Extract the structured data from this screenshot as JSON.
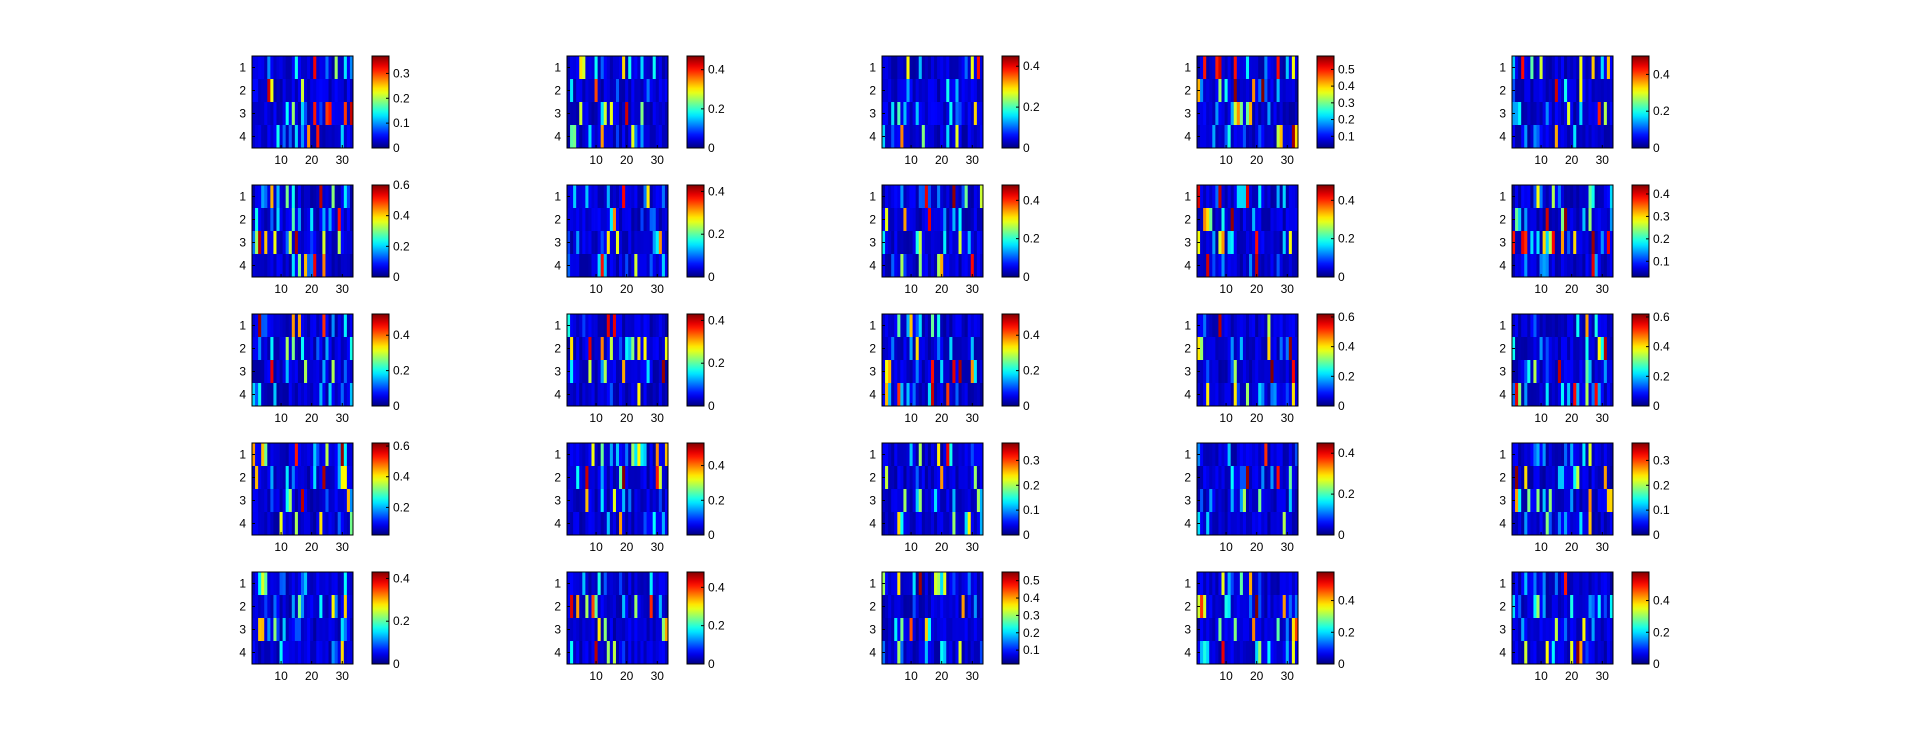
{
  "figure": {
    "rows": 5,
    "cols": 5,
    "colormap": "jet",
    "background": "#ffffff"
  },
  "chart_data": [
    {
      "type": "heatmap",
      "row": 0,
      "col": 0,
      "n_rows": 4,
      "n_cols": 33,
      "yticks": [
        "1",
        "2",
        "3",
        "4"
      ],
      "xticks": [
        "10",
        "20",
        "30"
      ],
      "colorbar_ticks": [
        "0",
        "0.1",
        "0.2",
        "0.3"
      ],
      "clim": [
        0,
        0.37
      ],
      "seed": 1
    },
    {
      "type": "heatmap",
      "row": 0,
      "col": 1,
      "n_rows": 4,
      "n_cols": 33,
      "yticks": [
        "1",
        "2",
        "3",
        "4"
      ],
      "xticks": [
        "10",
        "20",
        "30"
      ],
      "colorbar_ticks": [
        "0",
        "0.2",
        "0.4"
      ],
      "clim": [
        0,
        0.47
      ],
      "seed": 2
    },
    {
      "type": "heatmap",
      "row": 0,
      "col": 2,
      "n_rows": 4,
      "n_cols": 33,
      "yticks": [
        "1",
        "2",
        "3",
        "4"
      ],
      "xticks": [
        "10",
        "20",
        "30"
      ],
      "colorbar_ticks": [
        "0",
        "0.2",
        "0.4"
      ],
      "clim": [
        0,
        0.45
      ],
      "seed": 3
    },
    {
      "type": "heatmap",
      "row": 0,
      "col": 3,
      "n_rows": 4,
      "n_cols": 33,
      "yticks": [
        "1",
        "2",
        "3",
        "4"
      ],
      "xticks": [
        "10",
        "20",
        "30"
      ],
      "colorbar_ticks": [
        "0.1",
        "0.2",
        "0.3",
        "0.4",
        "0.5"
      ],
      "clim": [
        0.03,
        0.58
      ],
      "seed": 4
    },
    {
      "type": "heatmap",
      "row": 0,
      "col": 4,
      "n_rows": 4,
      "n_cols": 33,
      "yticks": [
        "1",
        "2",
        "3",
        "4"
      ],
      "xticks": [
        "10",
        "20",
        "30"
      ],
      "colorbar_ticks": [
        "0",
        "0.2",
        "0.4"
      ],
      "clim": [
        0,
        0.5
      ],
      "seed": 5
    },
    {
      "type": "heatmap",
      "row": 1,
      "col": 0,
      "n_rows": 4,
      "n_cols": 33,
      "yticks": [
        "1",
        "2",
        "3",
        "4"
      ],
      "xticks": [
        "10",
        "20",
        "30"
      ],
      "colorbar_ticks": [
        "0",
        "0.2",
        "0.4",
        "0.6"
      ],
      "clim": [
        0,
        0.6
      ],
      "seed": 6
    },
    {
      "type": "heatmap",
      "row": 1,
      "col": 1,
      "n_rows": 4,
      "n_cols": 33,
      "yticks": [
        "1",
        "2",
        "3",
        "4"
      ],
      "xticks": [
        "10",
        "20",
        "30"
      ],
      "colorbar_ticks": [
        "0",
        "0.2",
        "0.4"
      ],
      "clim": [
        0,
        0.43
      ],
      "seed": 7
    },
    {
      "type": "heatmap",
      "row": 1,
      "col": 2,
      "n_rows": 4,
      "n_cols": 33,
      "yticks": [
        "1",
        "2",
        "3",
        "4"
      ],
      "xticks": [
        "10",
        "20",
        "30"
      ],
      "colorbar_ticks": [
        "0",
        "0.2",
        "0.4"
      ],
      "clim": [
        0,
        0.48
      ],
      "seed": 8
    },
    {
      "type": "heatmap",
      "row": 1,
      "col": 3,
      "n_rows": 4,
      "n_cols": 33,
      "yticks": [
        "1",
        "2",
        "3",
        "4"
      ],
      "xticks": [
        "10",
        "20",
        "30"
      ],
      "colorbar_ticks": [
        "0",
        "0.2",
        "0.4"
      ],
      "clim": [
        0,
        0.48
      ],
      "seed": 9
    },
    {
      "type": "heatmap",
      "row": 1,
      "col": 4,
      "n_rows": 4,
      "n_cols": 33,
      "yticks": [
        "1",
        "2",
        "3",
        "4"
      ],
      "xticks": [
        "10",
        "20",
        "30"
      ],
      "colorbar_ticks": [
        "0.1",
        "0.2",
        "0.3",
        "0.4"
      ],
      "clim": [
        0.03,
        0.44
      ],
      "seed": 10
    },
    {
      "type": "heatmap",
      "row": 2,
      "col": 0,
      "n_rows": 4,
      "n_cols": 33,
      "yticks": [
        "1",
        "2",
        "3",
        "4"
      ],
      "xticks": [
        "10",
        "20",
        "30"
      ],
      "colorbar_ticks": [
        "0",
        "0.2",
        "0.4"
      ],
      "clim": [
        0,
        0.52
      ],
      "seed": 11
    },
    {
      "type": "heatmap",
      "row": 2,
      "col": 1,
      "n_rows": 4,
      "n_cols": 33,
      "yticks": [
        "1",
        "2",
        "3",
        "4"
      ],
      "xticks": [
        "10",
        "20",
        "30"
      ],
      "colorbar_ticks": [
        "0",
        "0.2",
        "0.4"
      ],
      "clim": [
        0,
        0.43
      ],
      "seed": 12
    },
    {
      "type": "heatmap",
      "row": 2,
      "col": 2,
      "n_rows": 4,
      "n_cols": 33,
      "yticks": [
        "1",
        "2",
        "3",
        "4"
      ],
      "xticks": [
        "10",
        "20",
        "30"
      ],
      "colorbar_ticks": [
        "0",
        "0.2",
        "0.4"
      ],
      "clim": [
        0,
        0.52
      ],
      "seed": 13
    },
    {
      "type": "heatmap",
      "row": 2,
      "col": 3,
      "n_rows": 4,
      "n_cols": 33,
      "yticks": [
        "1",
        "2",
        "3",
        "4"
      ],
      "xticks": [
        "10",
        "20",
        "30"
      ],
      "colorbar_ticks": [
        "0",
        "0.2",
        "0.4",
        "0.6"
      ],
      "clim": [
        0,
        0.62
      ],
      "seed": 14
    },
    {
      "type": "heatmap",
      "row": 2,
      "col": 4,
      "n_rows": 4,
      "n_cols": 33,
      "yticks": [
        "1",
        "2",
        "3",
        "4"
      ],
      "xticks": [
        "10",
        "20",
        "30"
      ],
      "colorbar_ticks": [
        "0",
        "0.2",
        "0.4",
        "0.6"
      ],
      "clim": [
        0,
        0.62
      ],
      "seed": 15
    },
    {
      "type": "heatmap",
      "row": 3,
      "col": 0,
      "n_rows": 4,
      "n_cols": 33,
      "yticks": [
        "1",
        "2",
        "3",
        "4"
      ],
      "xticks": [
        "10",
        "20",
        "30"
      ],
      "colorbar_ticks": [
        "0.2",
        "0.4",
        "0.6"
      ],
      "clim": [
        0.02,
        0.62
      ],
      "seed": 16
    },
    {
      "type": "heatmap",
      "row": 3,
      "col": 1,
      "n_rows": 4,
      "n_cols": 33,
      "yticks": [
        "1",
        "2",
        "3",
        "4"
      ],
      "xticks": [
        "10",
        "20",
        "30"
      ],
      "colorbar_ticks": [
        "0",
        "0.2",
        "0.4"
      ],
      "clim": [
        0,
        0.53
      ],
      "seed": 17
    },
    {
      "type": "heatmap",
      "row": 3,
      "col": 2,
      "n_rows": 4,
      "n_cols": 33,
      "yticks": [
        "1",
        "2",
        "3",
        "4"
      ],
      "xticks": [
        "10",
        "20",
        "30"
      ],
      "colorbar_ticks": [
        "0",
        "0.1",
        "0.2",
        "0.3"
      ],
      "clim": [
        0,
        0.37
      ],
      "seed": 18
    },
    {
      "type": "heatmap",
      "row": 3,
      "col": 3,
      "n_rows": 4,
      "n_cols": 33,
      "yticks": [
        "1",
        "2",
        "3",
        "4"
      ],
      "xticks": [
        "10",
        "20",
        "30"
      ],
      "colorbar_ticks": [
        "0",
        "0.2",
        "0.4"
      ],
      "clim": [
        0,
        0.45
      ],
      "seed": 19
    },
    {
      "type": "heatmap",
      "row": 3,
      "col": 4,
      "n_rows": 4,
      "n_cols": 33,
      "yticks": [
        "1",
        "2",
        "3",
        "4"
      ],
      "xticks": [
        "10",
        "20",
        "30"
      ],
      "colorbar_ticks": [
        "0",
        "0.1",
        "0.2",
        "0.3"
      ],
      "clim": [
        0,
        0.37
      ],
      "seed": 20
    },
    {
      "type": "heatmap",
      "row": 4,
      "col": 0,
      "n_rows": 4,
      "n_cols": 33,
      "yticks": [
        "1",
        "2",
        "3",
        "4"
      ],
      "xticks": [
        "10",
        "20",
        "30"
      ],
      "colorbar_ticks": [
        "0",
        "0.2",
        "0.4"
      ],
      "clim": [
        0,
        0.43
      ],
      "seed": 21
    },
    {
      "type": "heatmap",
      "row": 4,
      "col": 1,
      "n_rows": 4,
      "n_cols": 33,
      "yticks": [
        "1",
        "2",
        "3",
        "4"
      ],
      "xticks": [
        "10",
        "20",
        "30"
      ],
      "colorbar_ticks": [
        "0",
        "0.2",
        "0.4"
      ],
      "clim": [
        0,
        0.48
      ],
      "seed": 22
    },
    {
      "type": "heatmap",
      "row": 4,
      "col": 2,
      "n_rows": 4,
      "n_cols": 33,
      "yticks": [
        "1",
        "2",
        "3",
        "4"
      ],
      "xticks": [
        "10",
        "20",
        "30"
      ],
      "colorbar_ticks": [
        "0.1",
        "0.2",
        "0.3",
        "0.4",
        "0.5"
      ],
      "clim": [
        0.02,
        0.55
      ],
      "seed": 23
    },
    {
      "type": "heatmap",
      "row": 4,
      "col": 3,
      "n_rows": 4,
      "n_cols": 33,
      "yticks": [
        "1",
        "2",
        "3",
        "4"
      ],
      "xticks": [
        "10",
        "20",
        "30"
      ],
      "colorbar_ticks": [
        "0",
        "0.2",
        "0.4"
      ],
      "clim": [
        0,
        0.58
      ],
      "seed": 24
    },
    {
      "type": "heatmap",
      "row": 4,
      "col": 4,
      "n_rows": 4,
      "n_cols": 33,
      "yticks": [
        "1",
        "2",
        "3",
        "4"
      ],
      "xticks": [
        "10",
        "20",
        "30"
      ],
      "colorbar_ticks": [
        "0",
        "0.2",
        "0.4"
      ],
      "clim": [
        0,
        0.58
      ],
      "seed": 25
    }
  ]
}
